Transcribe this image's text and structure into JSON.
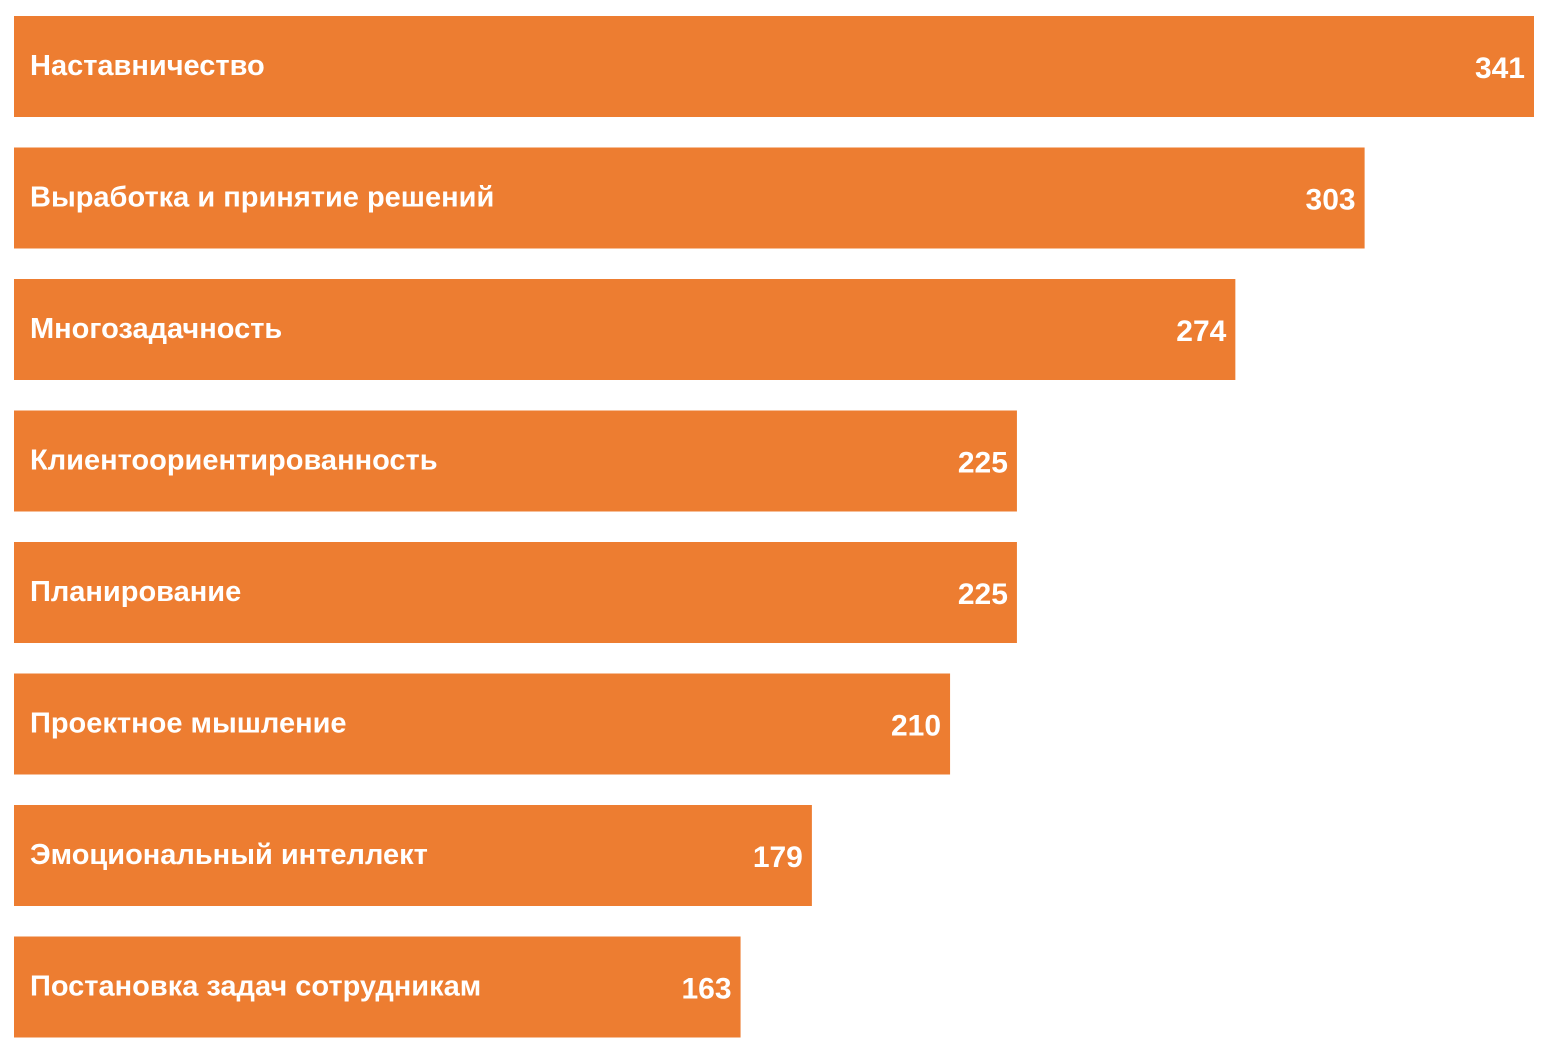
{
  "chart_data": {
    "type": "bar",
    "orientation": "horizontal",
    "categories": [
      "Наставничество",
      "Выработка и принятие решений",
      "Многозадачность",
      "Клиентоориентированность",
      "Планирование",
      "Проектное мышление",
      "Эмоциональный интеллект",
      "Постановка задач сотрудникам"
    ],
    "series": [
      {
        "values": [
          341,
          303,
          274,
          225,
          225,
          210,
          179,
          163
        ]
      }
    ],
    "value_labels": [
      "341",
      "303",
      "274",
      "225",
      "225",
      "210",
      "179",
      "163"
    ],
    "xlim": [
      0,
      341
    ],
    "grid": false,
    "legend": "none",
    "bar_color": "#ED7D31",
    "label_color": "#FFFFFF"
  }
}
